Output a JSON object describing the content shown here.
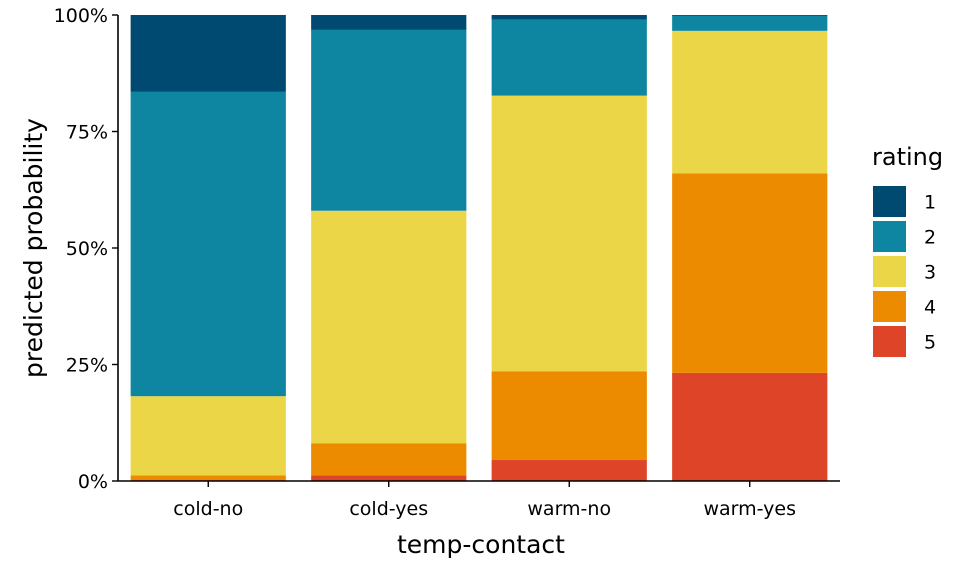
{
  "chart_data": {
    "type": "bar",
    "stacked": true,
    "xlabel": "temp-contact",
    "ylabel": "predicted probability",
    "ylim": [
      0,
      1
    ],
    "yticks": [
      0,
      0.25,
      0.5,
      0.75,
      1
    ],
    "ytick_labels": [
      "0%",
      "25%",
      "50%",
      "75%",
      "100%"
    ],
    "categories": [
      "cold-no",
      "cold-yes",
      "warm-no",
      "warm-yes"
    ],
    "grid": false,
    "legend": {
      "title": "rating",
      "position": "right"
    },
    "series": [
      {
        "name": "1",
        "color": "#004a72",
        "values": [
          0.165,
          0.032,
          0.01,
          0.002
        ]
      },
      {
        "name": "2",
        "color": "#0f86a1",
        "values": [
          0.653,
          0.388,
          0.163,
          0.032
        ]
      },
      {
        "name": "3",
        "color": "#ebd648",
        "values": [
          0.17,
          0.499,
          0.592,
          0.306
        ]
      },
      {
        "name": "4",
        "color": "#ed8b00",
        "values": [
          0.01,
          0.069,
          0.19,
          0.428
        ]
      },
      {
        "name": "5",
        "color": "#de4427",
        "values": [
          0.002,
          0.012,
          0.045,
          0.232
        ]
      }
    ]
  }
}
